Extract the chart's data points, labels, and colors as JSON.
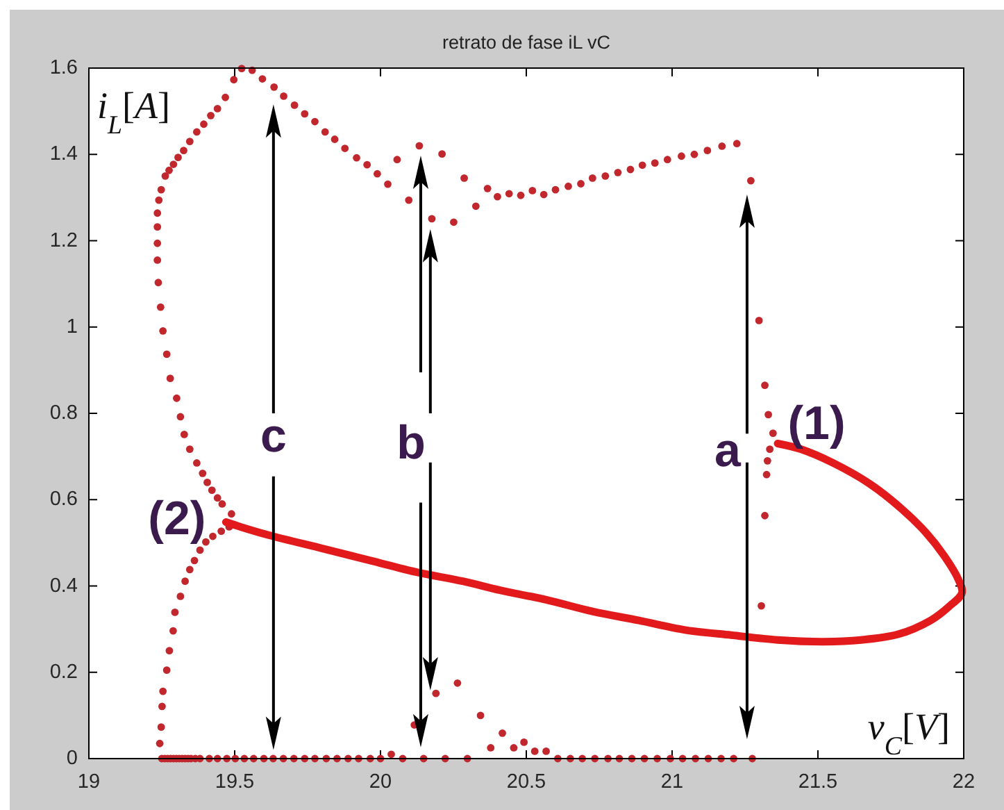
{
  "chart_data": {
    "type": "scatter",
    "title": "retrato de fase iL vC",
    "xlabel": "v$_{C}$[V]",
    "ylabel": "i$_{L}$[A]",
    "xlim": [
      19,
      22
    ],
    "ylim": [
      0,
      1.6
    ],
    "xticks": [
      19,
      19.5,
      20,
      20.5,
      21,
      21.5,
      22
    ],
    "yticks": [
      0,
      0.2,
      0.4,
      0.6,
      0.8,
      1,
      1.2,
      1.4,
      1.6
    ],
    "series": [
      {
        "type": "scatter",
        "color": "#c1272d",
        "marker": "circle",
        "x": [
          19.243,
          19.248,
          19.251,
          19.254,
          19.267,
          19.276,
          19.289,
          19.295,
          19.314,
          19.33,
          19.346,
          19.362,
          19.381,
          19.401,
          19.425,
          19.454,
          19.481,
          19.235,
          19.24,
          19.248,
          19.262,
          19.275,
          19.29,
          19.306,
          19.325,
          19.346,
          19.37,
          19.394,
          19.418,
          19.441,
          19.468,
          19.497,
          19.524,
          19.56,
          19.595,
          19.635,
          19.668,
          19.705,
          19.74,
          19.775,
          19.81,
          19.843,
          19.878,
          19.918,
          19.954,
          19.989,
          20.025,
          20.057,
          20.097,
          20.133,
          20.176,
          20.211,
          20.251,
          20.287,
          20.327,
          20.367,
          20.401,
          20.441,
          20.481,
          20.521,
          20.56,
          20.6,
          20.644,
          20.687,
          20.727,
          20.771,
          20.814,
          20.857,
          20.898,
          20.941,
          20.984,
          21.032,
          21.076,
          21.121,
          21.171,
          21.222,
          21.27,
          21.298,
          21.318,
          21.33,
          21.346,
          21.335,
          21.327,
          21.324,
          21.318,
          21.306,
          19.235,
          19.235,
          19.235,
          19.238,
          19.246,
          19.254,
          19.267,
          19.279,
          19.301,
          19.314,
          19.327,
          19.346,
          19.37,
          19.39,
          19.406,
          19.422,
          19.441,
          19.457,
          19.489,
          20.116,
          20.19,
          20.264,
          20.343,
          20.378,
          20.418,
          20.457,
          20.492,
          20.529,
          20.568,
          19.25,
          19.26,
          19.27,
          19.28,
          19.29,
          19.3,
          19.31,
          19.32,
          19.33,
          19.34,
          19.35,
          19.365,
          19.381,
          19.413,
          19.441,
          19.473,
          19.502,
          19.533,
          19.565,
          19.6,
          19.632,
          19.667,
          19.703,
          19.74,
          19.775,
          19.814,
          19.851,
          19.889,
          19.925,
          19.965,
          20,
          20.037,
          20.076,
          20.148,
          20.222,
          20.298,
          20.608,
          20.651,
          20.692,
          20.735,
          20.78,
          20.819,
          20.862,
          20.905,
          20.949,
          20.994,
          21.036,
          21.08,
          21.124,
          21.168,
          21.211,
          21.275
        ],
        "values": [
          0.035,
          0.073,
          0.121,
          0.156,
          0.205,
          0.25,
          0.296,
          0.339,
          0.376,
          0.411,
          0.438,
          0.459,
          0.483,
          0.502,
          0.515,
          0.527,
          0.537,
          1.264,
          1.294,
          1.318,
          1.35,
          1.363,
          1.377,
          1.393,
          1.409,
          1.43,
          1.452,
          1.47,
          1.49,
          1.506,
          1.532,
          1.573,
          1.599,
          1.595,
          1.575,
          1.556,
          1.535,
          1.514,
          1.494,
          1.476,
          1.452,
          1.435,
          1.414,
          1.392,
          1.376,
          1.355,
          1.331,
          1.388,
          1.294,
          1.42,
          1.251,
          1.401,
          1.243,
          1.345,
          1.28,
          1.321,
          1.302,
          1.309,
          1.305,
          1.316,
          1.307,
          1.318,
          1.326,
          1.332,
          1.345,
          1.35,
          1.358,
          1.365,
          1.375,
          1.38,
          1.388,
          1.396,
          1.4,
          1.409,
          1.419,
          1.425,
          1.339,
          1.015,
          0.865,
          0.797,
          0.754,
          0.717,
          0.69,
          0.658,
          0.563,
          0.354,
          1.232,
          1.194,
          1.155,
          1.103,
          1.046,
          0.991,
          0.937,
          0.881,
          0.835,
          0.792,
          0.751,
          0.717,
          0.685,
          0.661,
          0.64,
          0.622,
          0.604,
          0.59,
          0.567,
          0.078,
          0.151,
          0.175,
          0.1,
          0.025,
          0.059,
          0.025,
          0.038,
          0.017,
          0.017,
          0,
          0,
          0,
          0,
          0,
          0,
          0,
          0,
          0,
          0,
          0,
          0,
          0,
          0,
          0,
          0,
          0,
          0,
          0,
          0,
          0,
          0,
          0,
          0,
          0,
          0,
          0,
          0,
          0,
          0,
          0,
          0.01,
          0,
          0,
          0,
          0,
          0,
          0,
          0,
          0,
          0,
          0,
          0,
          0,
          0,
          0,
          0,
          0,
          0,
          0,
          0,
          0
        ]
      },
      {
        "type": "line",
        "color": "#e31a1c",
        "marker": "none",
        "line_style": "solid",
        "x": [
          19.47,
          19.52,
          19.616,
          19.806,
          19.965,
          20.124,
          20.282,
          20.41,
          20.568,
          20.727,
          20.886,
          21.044,
          21.203,
          21.362,
          21.52,
          21.648,
          21.775,
          21.886,
          21.949,
          21.994,
          21.981,
          21.933,
          21.87,
          21.79,
          21.679,
          21.552,
          21.441,
          21.362
        ],
        "values": [
          0.548,
          0.537,
          0.518,
          0.486,
          0.459,
          0.432,
          0.411,
          0.39,
          0.368,
          0.341,
          0.32,
          0.298,
          0.286,
          0.275,
          0.271,
          0.275,
          0.288,
          0.32,
          0.352,
          0.384,
          0.416,
          0.47,
          0.524,
          0.577,
          0.636,
          0.685,
          0.717,
          0.73
        ]
      }
    ],
    "annotations": [
      {
        "text": "(1)",
        "x": 21.362,
        "y": 0.73
      },
      {
        "text": "(2)",
        "x": 19.445,
        "y": 0.545
      },
      "a",
      {
        "text": "b",
        "x": 20.116,
        "y": 0.078
      },
      "c"
    ]
  }
}
